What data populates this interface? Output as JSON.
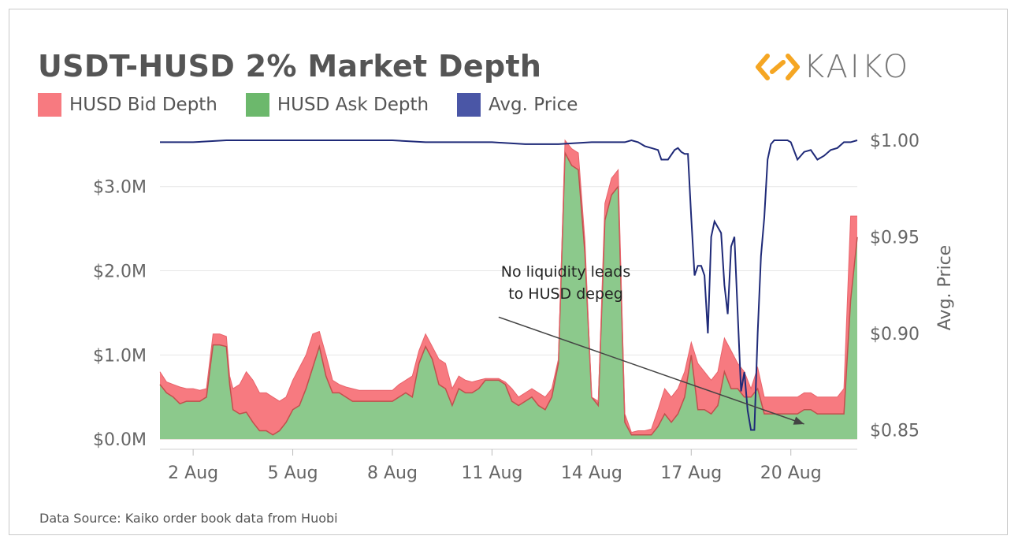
{
  "chart_data": {
    "type": "area",
    "title": "USDT-HUSD 2% Market Depth",
    "footer": "Data Source: Kaiko order book data from Huobi",
    "logo_text": "KAIKO",
    "y_left": {
      "min": -0.12,
      "max": 3.55,
      "ticks": [
        0,
        1,
        2,
        3
      ],
      "tick_labels": [
        "$0.0M",
        "$1.0M",
        "$2.0M",
        "$3.0M"
      ]
    },
    "y_right": {
      "label": "Avg. Price",
      "min": 0.84,
      "max": 1.0,
      "ticks": [
        0.85,
        0.9,
        0.95,
        1.0
      ],
      "tick_labels": [
        "$0.85",
        "$0.90",
        "$0.95",
        "$1.00"
      ]
    },
    "x": {
      "min": 1.0,
      "max": 22.0,
      "ticks": [
        2,
        5,
        8,
        11,
        14,
        17,
        20
      ],
      "tick_labels": [
        "2 Aug",
        "5 Aug",
        "8 Aug",
        "11 Aug",
        "14 Aug",
        "17 Aug",
        "20 Aug"
      ]
    },
    "grid": true,
    "legend_position": "top-left",
    "colors": {
      "bid": "#f77a80",
      "ask": "#8cc98c",
      "ask_line": "#c0504d",
      "price": "#1f2a78",
      "grid": "#e6e6e6"
    },
    "annotation": {
      "lines": [
        "No liquidity leads",
        "to HUSD depeg"
      ],
      "arrow_from_x": 11.2,
      "arrow_from_y": 1.45,
      "arrow_to_x": 20.4,
      "arrow_to_y": 0.18
    },
    "series": [
      {
        "name": "HUSD Bid Depth",
        "x": [
          1.0,
          1.2,
          1.4,
          1.6,
          1.8,
          2.0,
          2.2,
          2.4,
          2.6,
          2.8,
          3.0,
          3.1,
          3.2,
          3.4,
          3.6,
          3.8,
          4.0,
          4.2,
          4.4,
          4.6,
          4.8,
          5.0,
          5.2,
          5.4,
          5.6,
          5.8,
          6.0,
          6.2,
          6.4,
          6.6,
          6.8,
          7.0,
          7.2,
          7.4,
          7.6,
          7.8,
          8.0,
          8.2,
          8.4,
          8.6,
          8.8,
          9.0,
          9.2,
          9.4,
          9.6,
          9.8,
          10.0,
          10.2,
          10.4,
          10.6,
          10.8,
          11.0,
          11.2,
          11.4,
          11.6,
          11.8,
          12.0,
          12.2,
          12.4,
          12.6,
          12.8,
          13.0,
          13.2,
          13.4,
          13.6,
          13.8,
          14.0,
          14.2,
          14.4,
          14.6,
          14.8,
          15.0,
          15.2,
          15.4,
          15.6,
          15.8,
          16.0,
          16.2,
          16.4,
          16.6,
          16.8,
          17.0,
          17.2,
          17.4,
          17.6,
          17.8,
          18.0,
          18.2,
          18.4,
          18.6,
          18.8,
          19.0,
          19.2,
          19.4,
          19.6,
          19.8,
          20.0,
          20.2,
          20.4,
          20.6,
          20.8,
          21.0,
          21.2,
          21.4,
          21.6,
          21.8,
          22.0
        ],
        "values": [
          0.65,
          0.55,
          0.5,
          0.42,
          0.45,
          0.45,
          0.45,
          0.5,
          1.12,
          1.12,
          1.1,
          0.65,
          0.35,
          0.3,
          0.32,
          0.2,
          0.1,
          0.1,
          0.05,
          0.1,
          0.2,
          0.35,
          0.4,
          0.6,
          0.85,
          1.1,
          0.75,
          0.55,
          0.55,
          0.5,
          0.45,
          0.45,
          0.45,
          0.45,
          0.45,
          0.45,
          0.45,
          0.5,
          0.55,
          0.5,
          0.9,
          1.1,
          0.95,
          0.65,
          0.6,
          0.4,
          0.6,
          0.55,
          0.55,
          0.6,
          0.7,
          0.7,
          0.7,
          0.65,
          0.45,
          0.4,
          0.45,
          0.5,
          0.4,
          0.35,
          0.5,
          0.9,
          3.4,
          3.25,
          3.2,
          2.2,
          0.5,
          0.4,
          2.6,
          2.9,
          3.0,
          0.2,
          0.05,
          0.05,
          0.05,
          0.05,
          0.15,
          0.3,
          0.2,
          0.3,
          0.5,
          1.0,
          0.35,
          0.35,
          0.3,
          0.4,
          0.8,
          0.6,
          0.6,
          0.5,
          0.5,
          0.6,
          0.3,
          0.3,
          0.3,
          0.3,
          0.3,
          0.3,
          0.35,
          0.35,
          0.3,
          0.3,
          0.3,
          0.3,
          0.3,
          1.65,
          2.4
        ]
      },
      {
        "name": "HUSD Ask Depth",
        "x": [
          1.0,
          1.2,
          1.4,
          1.6,
          1.8,
          2.0,
          2.2,
          2.4,
          2.6,
          2.8,
          3.0,
          3.1,
          3.2,
          3.4,
          3.6,
          3.8,
          4.0,
          4.2,
          4.4,
          4.6,
          4.8,
          5.0,
          5.2,
          5.4,
          5.6,
          5.8,
          6.0,
          6.2,
          6.4,
          6.6,
          6.8,
          7.0,
          7.2,
          7.4,
          7.6,
          7.8,
          8.0,
          8.2,
          8.4,
          8.6,
          8.8,
          9.0,
          9.2,
          9.4,
          9.6,
          9.8,
          10.0,
          10.2,
          10.4,
          10.6,
          10.8,
          11.0,
          11.2,
          11.4,
          11.6,
          11.8,
          12.0,
          12.2,
          12.4,
          12.6,
          12.8,
          13.0,
          13.2,
          13.4,
          13.6,
          13.8,
          14.0,
          14.2,
          14.4,
          14.6,
          14.8,
          15.0,
          15.2,
          15.4,
          15.6,
          15.8,
          16.0,
          16.2,
          16.4,
          16.6,
          16.8,
          17.0,
          17.2,
          17.4,
          17.6,
          17.8,
          18.0,
          18.2,
          18.4,
          18.6,
          18.8,
          19.0,
          19.2,
          19.4,
          19.6,
          19.8,
          20.0,
          20.2,
          20.4,
          20.6,
          20.8,
          21.0,
          21.2,
          21.4,
          21.6,
          21.8,
          22.0
        ],
        "values": [
          0.8,
          0.68,
          0.65,
          0.62,
          0.6,
          0.6,
          0.58,
          0.6,
          1.25,
          1.25,
          1.22,
          0.75,
          0.6,
          0.65,
          0.8,
          0.7,
          0.55,
          0.55,
          0.5,
          0.45,
          0.5,
          0.7,
          0.85,
          1.0,
          1.25,
          1.28,
          1.0,
          0.7,
          0.65,
          0.62,
          0.6,
          0.58,
          0.58,
          0.58,
          0.58,
          0.58,
          0.58,
          0.65,
          0.7,
          0.75,
          1.05,
          1.25,
          1.1,
          0.95,
          0.9,
          0.6,
          0.75,
          0.7,
          0.68,
          0.7,
          0.72,
          0.72,
          0.72,
          0.68,
          0.6,
          0.5,
          0.55,
          0.6,
          0.55,
          0.5,
          0.6,
          0.95,
          3.55,
          3.45,
          3.4,
          2.35,
          0.5,
          0.45,
          2.8,
          3.1,
          3.2,
          0.3,
          0.08,
          0.1,
          0.1,
          0.12,
          0.35,
          0.6,
          0.5,
          0.6,
          0.8,
          1.15,
          0.9,
          0.8,
          0.7,
          0.8,
          1.2,
          1.05,
          0.9,
          0.8,
          0.6,
          0.85,
          0.5,
          0.5,
          0.5,
          0.5,
          0.5,
          0.5,
          0.55,
          0.55,
          0.5,
          0.5,
          0.5,
          0.5,
          0.6,
          2.65,
          2.65
        ]
      },
      {
        "name": "Avg. Price",
        "x": [
          1.0,
          2.0,
          3.0,
          4.0,
          5.0,
          6.0,
          7.0,
          8.0,
          9.0,
          10.0,
          11.0,
          12.0,
          13.0,
          14.0,
          15.0,
          15.2,
          15.4,
          15.6,
          15.8,
          16.0,
          16.1,
          16.3,
          16.5,
          16.6,
          16.7,
          16.8,
          16.9,
          17.0,
          17.1,
          17.2,
          17.3,
          17.4,
          17.5,
          17.6,
          17.7,
          17.8,
          17.9,
          18.0,
          18.1,
          18.2,
          18.3,
          18.4,
          18.5,
          18.6,
          18.7,
          18.8,
          18.9,
          19.0,
          19.1,
          19.2,
          19.3,
          19.4,
          19.5,
          19.6,
          19.7,
          19.8,
          19.9,
          20.0,
          20.2,
          20.4,
          20.6,
          20.8,
          21.0,
          21.2,
          21.4,
          21.6,
          21.8,
          22.0
        ],
        "values": [
          0.999,
          0.999,
          1.0,
          1.0,
          1.0,
          1.0,
          1.0,
          1.0,
          0.999,
          0.999,
          0.999,
          0.998,
          0.998,
          0.999,
          0.999,
          1.0,
          0.999,
          0.997,
          0.996,
          0.995,
          0.99,
          0.99,
          0.995,
          0.996,
          0.994,
          0.993,
          0.993,
          0.96,
          0.93,
          0.935,
          0.935,
          0.93,
          0.9,
          0.95,
          0.958,
          0.955,
          0.952,
          0.925,
          0.91,
          0.945,
          0.95,
          0.91,
          0.87,
          0.88,
          0.86,
          0.85,
          0.85,
          0.9,
          0.94,
          0.96,
          0.99,
          0.998,
          1.0,
          1.0,
          1.0,
          1.0,
          1.0,
          0.999,
          0.99,
          0.994,
          0.995,
          0.99,
          0.992,
          0.995,
          0.996,
          0.999,
          0.999,
          1.0
        ]
      }
    ]
  },
  "legend": [
    {
      "label": "HUSD Bid Depth",
      "color": "#f77a80"
    },
    {
      "label": "HUSD Ask Depth",
      "color": "#6cb86c"
    },
    {
      "label": "Avg. Price",
      "color": "#4a56a6"
    }
  ]
}
